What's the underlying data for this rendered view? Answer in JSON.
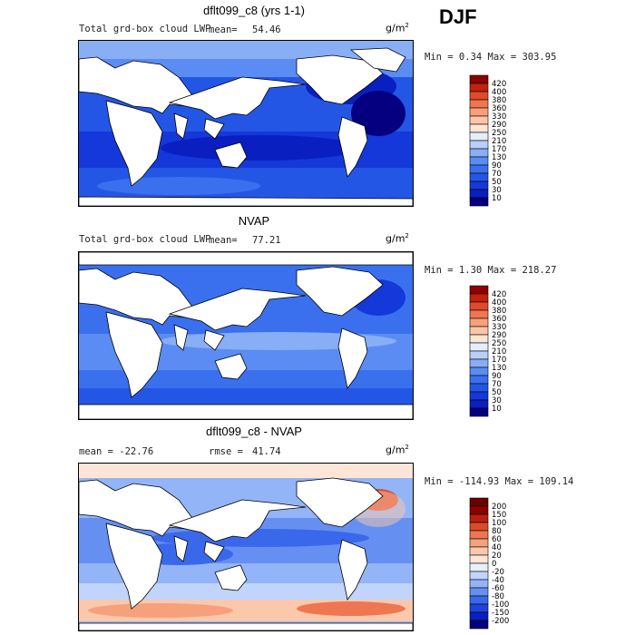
{
  "season": "DJF",
  "units": "g/m",
  "units_exp": "2",
  "panels": [
    {
      "title": "dflt099_c8 (yrs 1-1)",
      "left_label": "Total grd-box cloud LWP",
      "stat_label": "mean=",
      "stat_value": "54.46",
      "minmax": "Min =    0.34 Max = 303.95"
    },
    {
      "title": "NVAP",
      "left_label": "Total grd-box cloud LWP",
      "stat_label": "mean=",
      "stat_value": "77.21",
      "minmax": "Min =    1.30 Max = 218.27"
    },
    {
      "title": "dflt099_c8 - NVAP",
      "left_label": "mean = -22.76",
      "stat_label": "rmse =",
      "stat_value": "41.74",
      "minmax": "Min = -114.93 Max = 109.14"
    }
  ],
  "chart_data": [
    {
      "type": "heatmap",
      "title": "dflt099_c8 (yrs 1-1)",
      "variable": "Total grd-box cloud LWP",
      "units": "g/m2",
      "mean": 54.46,
      "min": 0.34,
      "max": 303.95,
      "colorbar_levels": [
        10,
        30,
        50,
        70,
        90,
        130,
        170,
        210,
        250,
        290,
        330,
        360,
        380,
        400,
        420
      ]
    },
    {
      "type": "heatmap",
      "title": "NVAP",
      "variable": "Total grd-box cloud LWP",
      "units": "g/m2",
      "mean": 77.21,
      "min": 1.3,
      "max": 218.27,
      "colorbar_levels": [
        10,
        30,
        50,
        70,
        90,
        130,
        170,
        210,
        250,
        290,
        330,
        360,
        380,
        400,
        420
      ]
    },
    {
      "type": "heatmap",
      "title": "dflt099_c8 - NVAP",
      "units": "g/m2",
      "mean": -22.76,
      "rmse": 41.74,
      "min": -114.93,
      "max": 109.14,
      "colorbar_levels": [
        -200,
        -150,
        -100,
        -80,
        -60,
        -40,
        -20,
        0,
        20,
        40,
        60,
        80,
        100,
        150,
        200
      ]
    }
  ],
  "colors": {
    "abs_scale": [
      "#05007f",
      "#0a1fbf",
      "#1438d9",
      "#2456e6",
      "#3a70ee",
      "#5a8cf3",
      "#88aef6",
      "#b8cffa",
      "#e5eefd",
      "#fde4d4",
      "#fbc6a8",
      "#f7a07a",
      "#f07650",
      "#e04a2c",
      "#c2220e",
      "#8c0000"
    ],
    "diff_scale": [
      "#05007f",
      "#0a1fbf",
      "#1c44dc",
      "#3a68ea",
      "#6590f2",
      "#93b4f7",
      "#c1d4fb",
      "#e8f0fe",
      "#fde6d7",
      "#fbc8ab",
      "#f6a07c",
      "#ee7652",
      "#dc4a2c",
      "#b8200e",
      "#8c0000",
      "#6a0000"
    ],
    "land": "#ffffff",
    "coast": "#000000"
  }
}
